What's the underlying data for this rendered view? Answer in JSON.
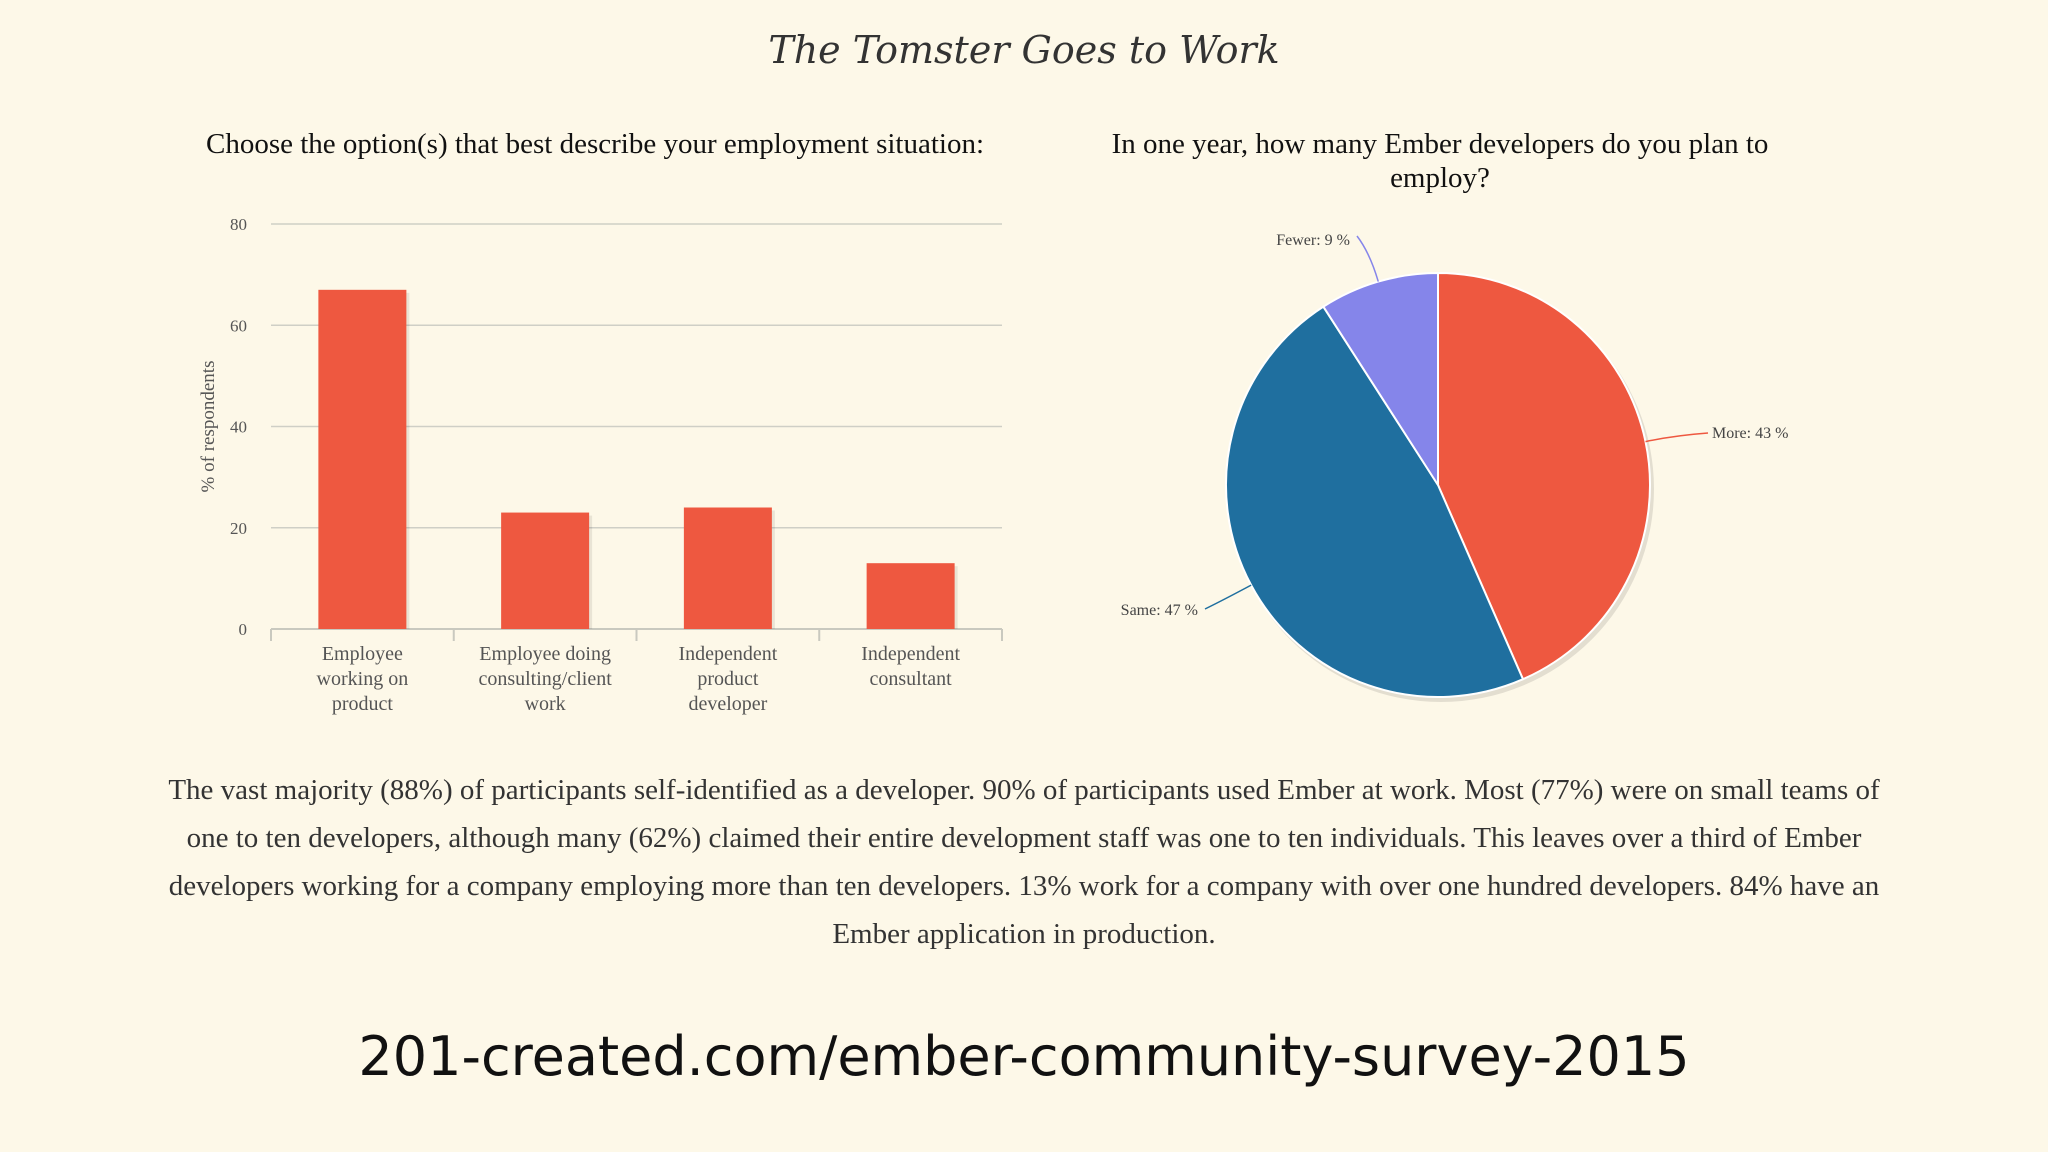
{
  "page": {
    "title": "The Tomster Goes to Work",
    "body": "The vast majority (88%) of participants self-identified as a developer. 90% of participants used Ember at work. Most (77%) were on small teams of one to ten developers, although many (62%) claimed their entire development staff was one to ten individuals. This leaves over a third of Ember developers working for a company employing more than ten developers. 13% work for a company with over one hundred developers. 84% have an Ember application in production.",
    "url": "201-created.com/ember-community-survey-2015"
  },
  "chart_data": [
    {
      "type": "bar",
      "title": "Choose the option(s) that best describe your employment situation:",
      "xlabel": "",
      "ylabel": "% of respondents",
      "ylim": [
        0,
        80
      ],
      "yticks": [
        "0",
        "20",
        "40",
        "60",
        "80"
      ],
      "grid": true,
      "categories": [
        [
          "Employee",
          "working on",
          "product"
        ],
        [
          "Employee doing",
          "consulting/client",
          "work"
        ],
        [
          "Independent",
          "product",
          "developer"
        ],
        [
          "Independent",
          "consultant"
        ]
      ],
      "values": [
        67,
        23,
        24,
        13
      ],
      "color": "#ee5840"
    },
    {
      "type": "pie",
      "title": "In one year, how many Ember developers do you plan to employ?",
      "slices": [
        {
          "label": "More: 43 %",
          "value": 43,
          "color": "#ee5840"
        },
        {
          "label": "Same: 47 %",
          "value": 47,
          "color": "#1f6f9f"
        },
        {
          "label": "Fewer: 9 %",
          "value": 9,
          "color": "#8585ea"
        }
      ]
    }
  ]
}
